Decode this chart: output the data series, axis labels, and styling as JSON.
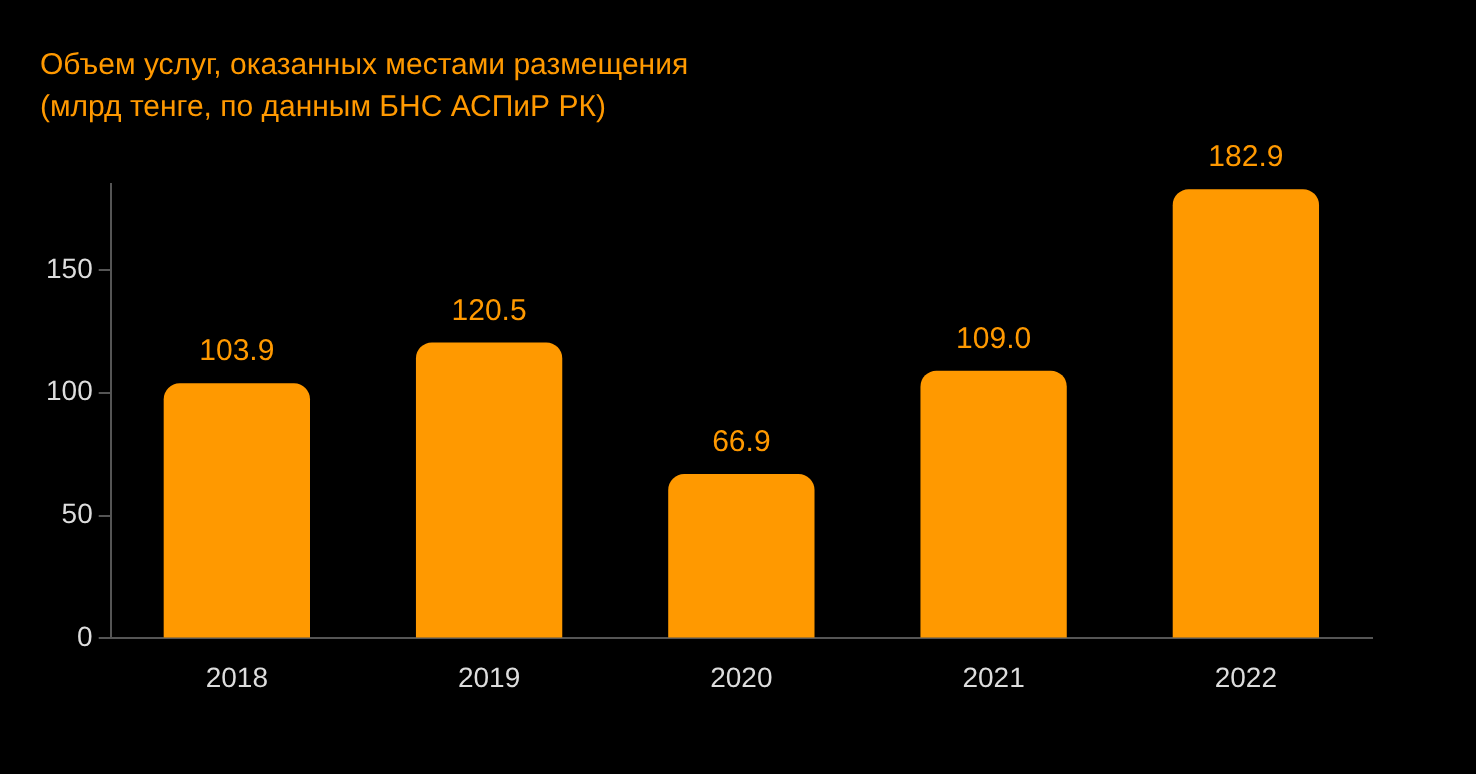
{
  "chart_data": {
    "type": "bar",
    "title": "Объем услуг, оказанных местами размещения",
    "subtitle": "(млрд тенге, по данным БНС АСПиР РК)",
    "categories": [
      "2018",
      "2019",
      "2020",
      "2021",
      "2022"
    ],
    "values": [
      103.9,
      120.5,
      66.9,
      109.0,
      182.9
    ],
    "value_labels": [
      "103.9",
      "120.5",
      "66.9",
      "109.0",
      "182.9"
    ],
    "color": "#ff9900",
    "ylim": [
      0,
      185
    ],
    "yticks": [
      0,
      50,
      100,
      150
    ],
    "grid": false,
    "legend": false
  }
}
